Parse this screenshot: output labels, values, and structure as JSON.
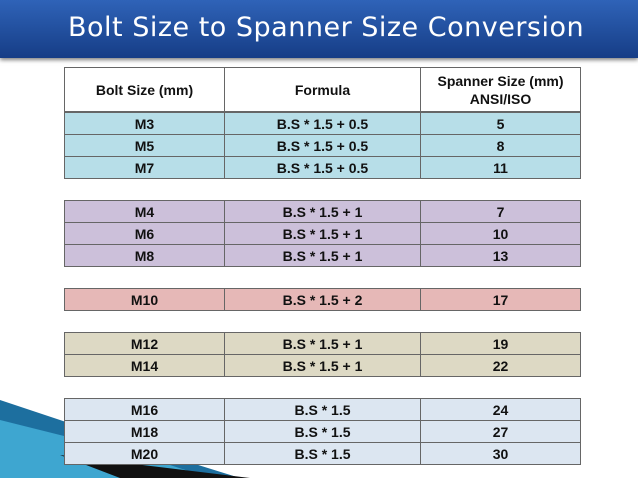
{
  "header": {
    "title": "Bolt Size to Spanner Size Conversion"
  },
  "table": {
    "headers": [
      "Bolt Size (mm)",
      "Formula",
      "Spanner Size (mm) ANSI/ISO"
    ],
    "groups": [
      {
        "rows": [
          [
            "M3",
            "B.S * 1.5 + 0.5",
            "5"
          ],
          [
            "M5",
            "B.S * 1.5 + 0.5",
            "8"
          ],
          [
            "M7",
            "B.S * 1.5 + 0.5",
            "11"
          ]
        ]
      },
      {
        "rows": [
          [
            "M4",
            "B.S * 1.5 + 1",
            "7"
          ],
          [
            "M6",
            "B.S * 1.5 + 1",
            "10"
          ],
          [
            "M8",
            "B.S * 1.5 + 1",
            "13"
          ]
        ]
      },
      {
        "rows": [
          [
            "M10",
            "B.S * 1.5 + 2",
            "17"
          ]
        ]
      },
      {
        "rows": [
          [
            "M12",
            "B.S * 1.5 + 1",
            "19"
          ],
          [
            "M14",
            "B.S * 1.5 + 1",
            "22"
          ]
        ]
      },
      {
        "rows": [
          [
            "M16",
            "B.S * 1.5",
            "24"
          ],
          [
            "M18",
            "B.S * 1.5",
            "27"
          ],
          [
            "M20",
            "B.S * 1.5",
            "30"
          ]
        ]
      }
    ]
  }
}
